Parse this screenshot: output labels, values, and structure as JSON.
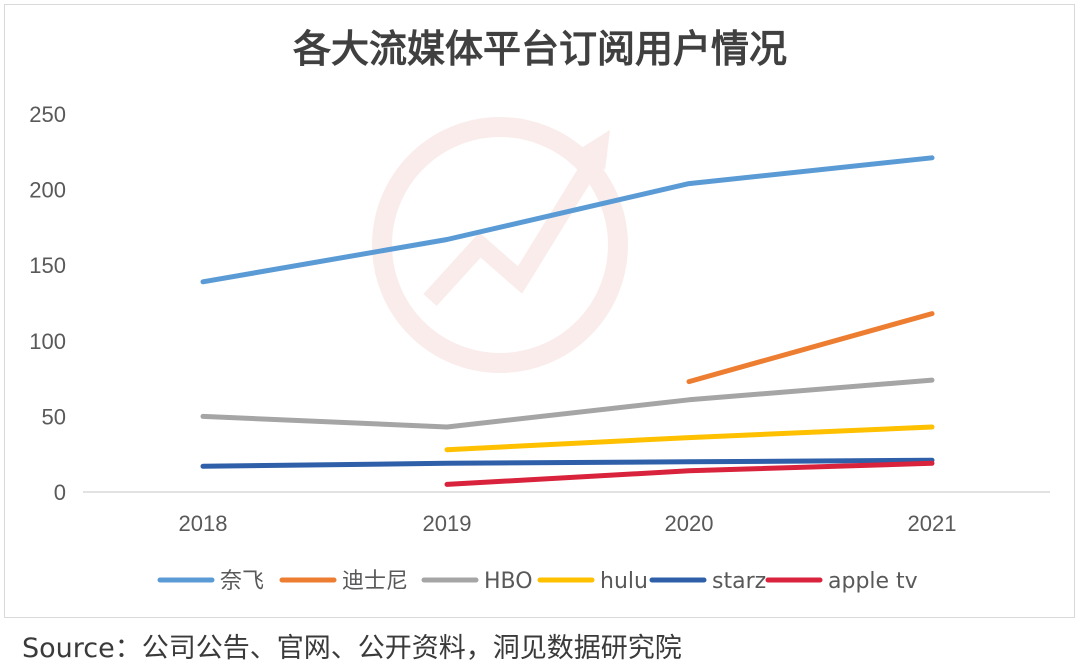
{
  "source": "Source：公司公告、官网、公开资料，洞见数据研究院",
  "chart_data": {
    "type": "line",
    "title": "各大流媒体平台订阅用户情况",
    "categories": [
      "2018",
      "2019",
      "2020",
      "2021"
    ],
    "ylim": [
      0,
      250
    ],
    "yticks": [
      "0",
      "50",
      "100",
      "150",
      "200",
      "250"
    ],
    "grid": false,
    "legend_position": "bottom",
    "series": [
      {
        "name": "奈飞",
        "color": "#5b9bd5",
        "values": [
          139,
          167,
          204,
          221
        ]
      },
      {
        "name": "迪士尼",
        "color": "#ed7d31",
        "values": [
          null,
          null,
          73,
          118
        ]
      },
      {
        "name": "HBO",
        "color": "#a5a5a5",
        "values": [
          50,
          43,
          61,
          74
        ]
      },
      {
        "name": "hulu",
        "color": "#ffc000",
        "values": [
          null,
          28,
          36,
          43
        ]
      },
      {
        "name": "starz",
        "color": "#2e5fa8",
        "values": [
          17,
          19,
          20,
          21
        ]
      },
      {
        "name": "apple tv",
        "color": "#d9223b",
        "values": [
          null,
          5,
          14,
          19
        ]
      }
    ]
  }
}
